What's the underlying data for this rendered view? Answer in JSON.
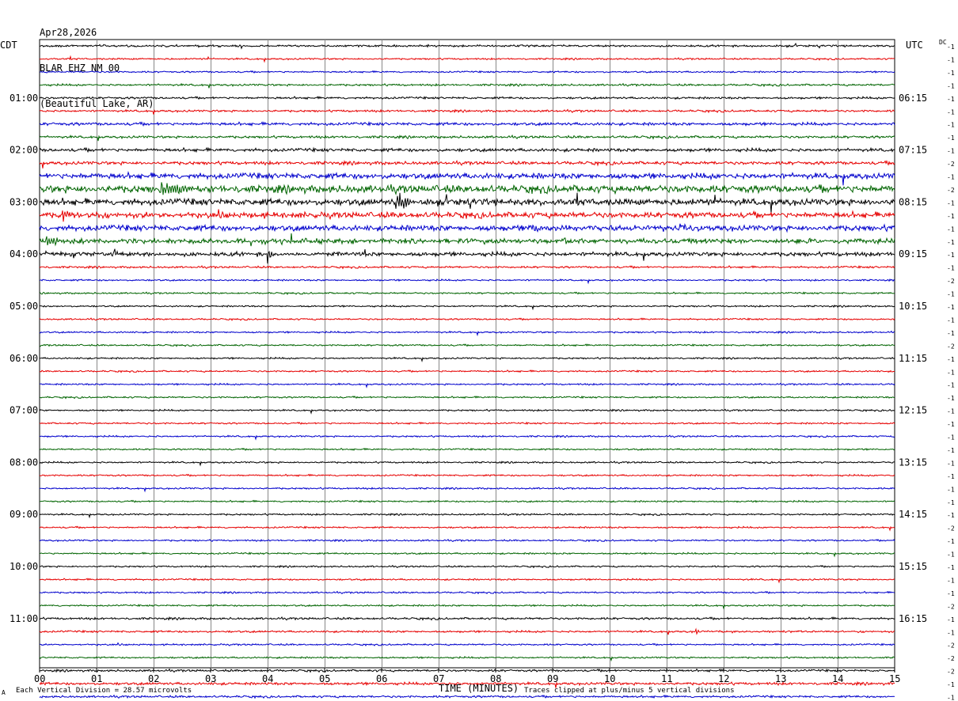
{
  "header": {
    "date": "Apr28,2026",
    "station": "BLAR EHZ NM 00",
    "location": "(Beautiful Lake, AR)"
  },
  "left_zone": "CDT",
  "right_zone": "UTC",
  "dc_label": "DC",
  "footer": {
    "scale_note": "Each Vertical Division =   28.57 microvolts",
    "xlabel": "TIME (MINUTES)",
    "clip_note": "Traces clipped at plus/minus 5 vertical divisions",
    "corner_mark": "A"
  },
  "colors": [
    "#000000",
    "#e60000",
    "#0000cc",
    "#006400"
  ],
  "chart_data": {
    "type": "line",
    "title": "BLAR EHZ NM 00",
    "xlabel": "TIME (MINUTES)",
    "xlim": [
      0,
      15
    ],
    "x_ticks": [
      "00",
      "01",
      "02",
      "03",
      "04",
      "05",
      "06",
      "07",
      "08",
      "09",
      "10",
      "11",
      "12",
      "13",
      "14",
      "15"
    ],
    "lines_per_hour": 4,
    "hour_labels_local": [
      "01:00",
      "02:00",
      "03:00",
      "04:00",
      "05:00",
      "06:00",
      "07:00",
      "08:00",
      "09:00",
      "10:00",
      "11:00"
    ],
    "hour_labels_utc": [
      "06:15",
      "07:15",
      "08:15",
      "09:15",
      "10:15",
      "11:15",
      "12:15",
      "13:15",
      "14:15",
      "15:15",
      "16:15"
    ],
    "dc_offsets": [
      -1,
      -1,
      -1,
      -1,
      -1,
      -1,
      -1,
      -1,
      -1,
      -2,
      -1,
      -2,
      -1,
      -1,
      -1,
      -1,
      -1,
      -1,
      -2,
      -1,
      -1,
      -1,
      -1,
      -2,
      -1,
      -1,
      -1,
      -1,
      -1,
      -1,
      -1,
      -1,
      -1,
      -1,
      -1,
      -1,
      -1,
      -2,
      -1,
      -1,
      -1,
      -1,
      -1,
      -2,
      -1,
      -1,
      -2,
      -2,
      -2,
      -1,
      -1
    ],
    "trace_noise": [
      1.2,
      1,
      1,
      1.2,
      1.3,
      1.3,
      1.8,
      1.5,
      2,
      2,
      3.5,
      4.5,
      4,
      3.5,
      3.5,
      3,
      2.5,
      1.2,
      1,
      1,
      1,
      1,
      1,
      1,
      1,
      1,
      1,
      1,
      1,
      1,
      1,
      1,
      1,
      1,
      1,
      1,
      1,
      1,
      1,
      1,
      1,
      1,
      1,
      1,
      1.3,
      1.2,
      1,
      1,
      1.3,
      1.6,
      1.3
    ],
    "events": [
      {
        "trace": 11,
        "minute": 2.1,
        "amplitude": 10,
        "duration": 0.9
      },
      {
        "trace": 12,
        "minute": 6.25,
        "amplitude": 12,
        "duration": 0.5
      },
      {
        "trace": 13,
        "minute": 0.4,
        "amplitude": 8,
        "duration": 0.3
      },
      {
        "trace": 14,
        "minute": 8.6,
        "amplitude": 7,
        "duration": 0.3
      },
      {
        "trace": 15,
        "minute": 0.1,
        "amplitude": 8,
        "duration": 0.5
      },
      {
        "trace": 16,
        "minute": 4.0,
        "amplitude": 18,
        "duration": 0.1
      },
      {
        "trace": 16,
        "minute": 1.3,
        "amplitude": 10,
        "duration": 0.1
      },
      {
        "trace": 15,
        "minute": 9.2,
        "amplitude": 10,
        "duration": 0.1
      },
      {
        "trace": 45,
        "minute": 11.5,
        "amplitude": 5,
        "duration": 0.1
      }
    ]
  }
}
